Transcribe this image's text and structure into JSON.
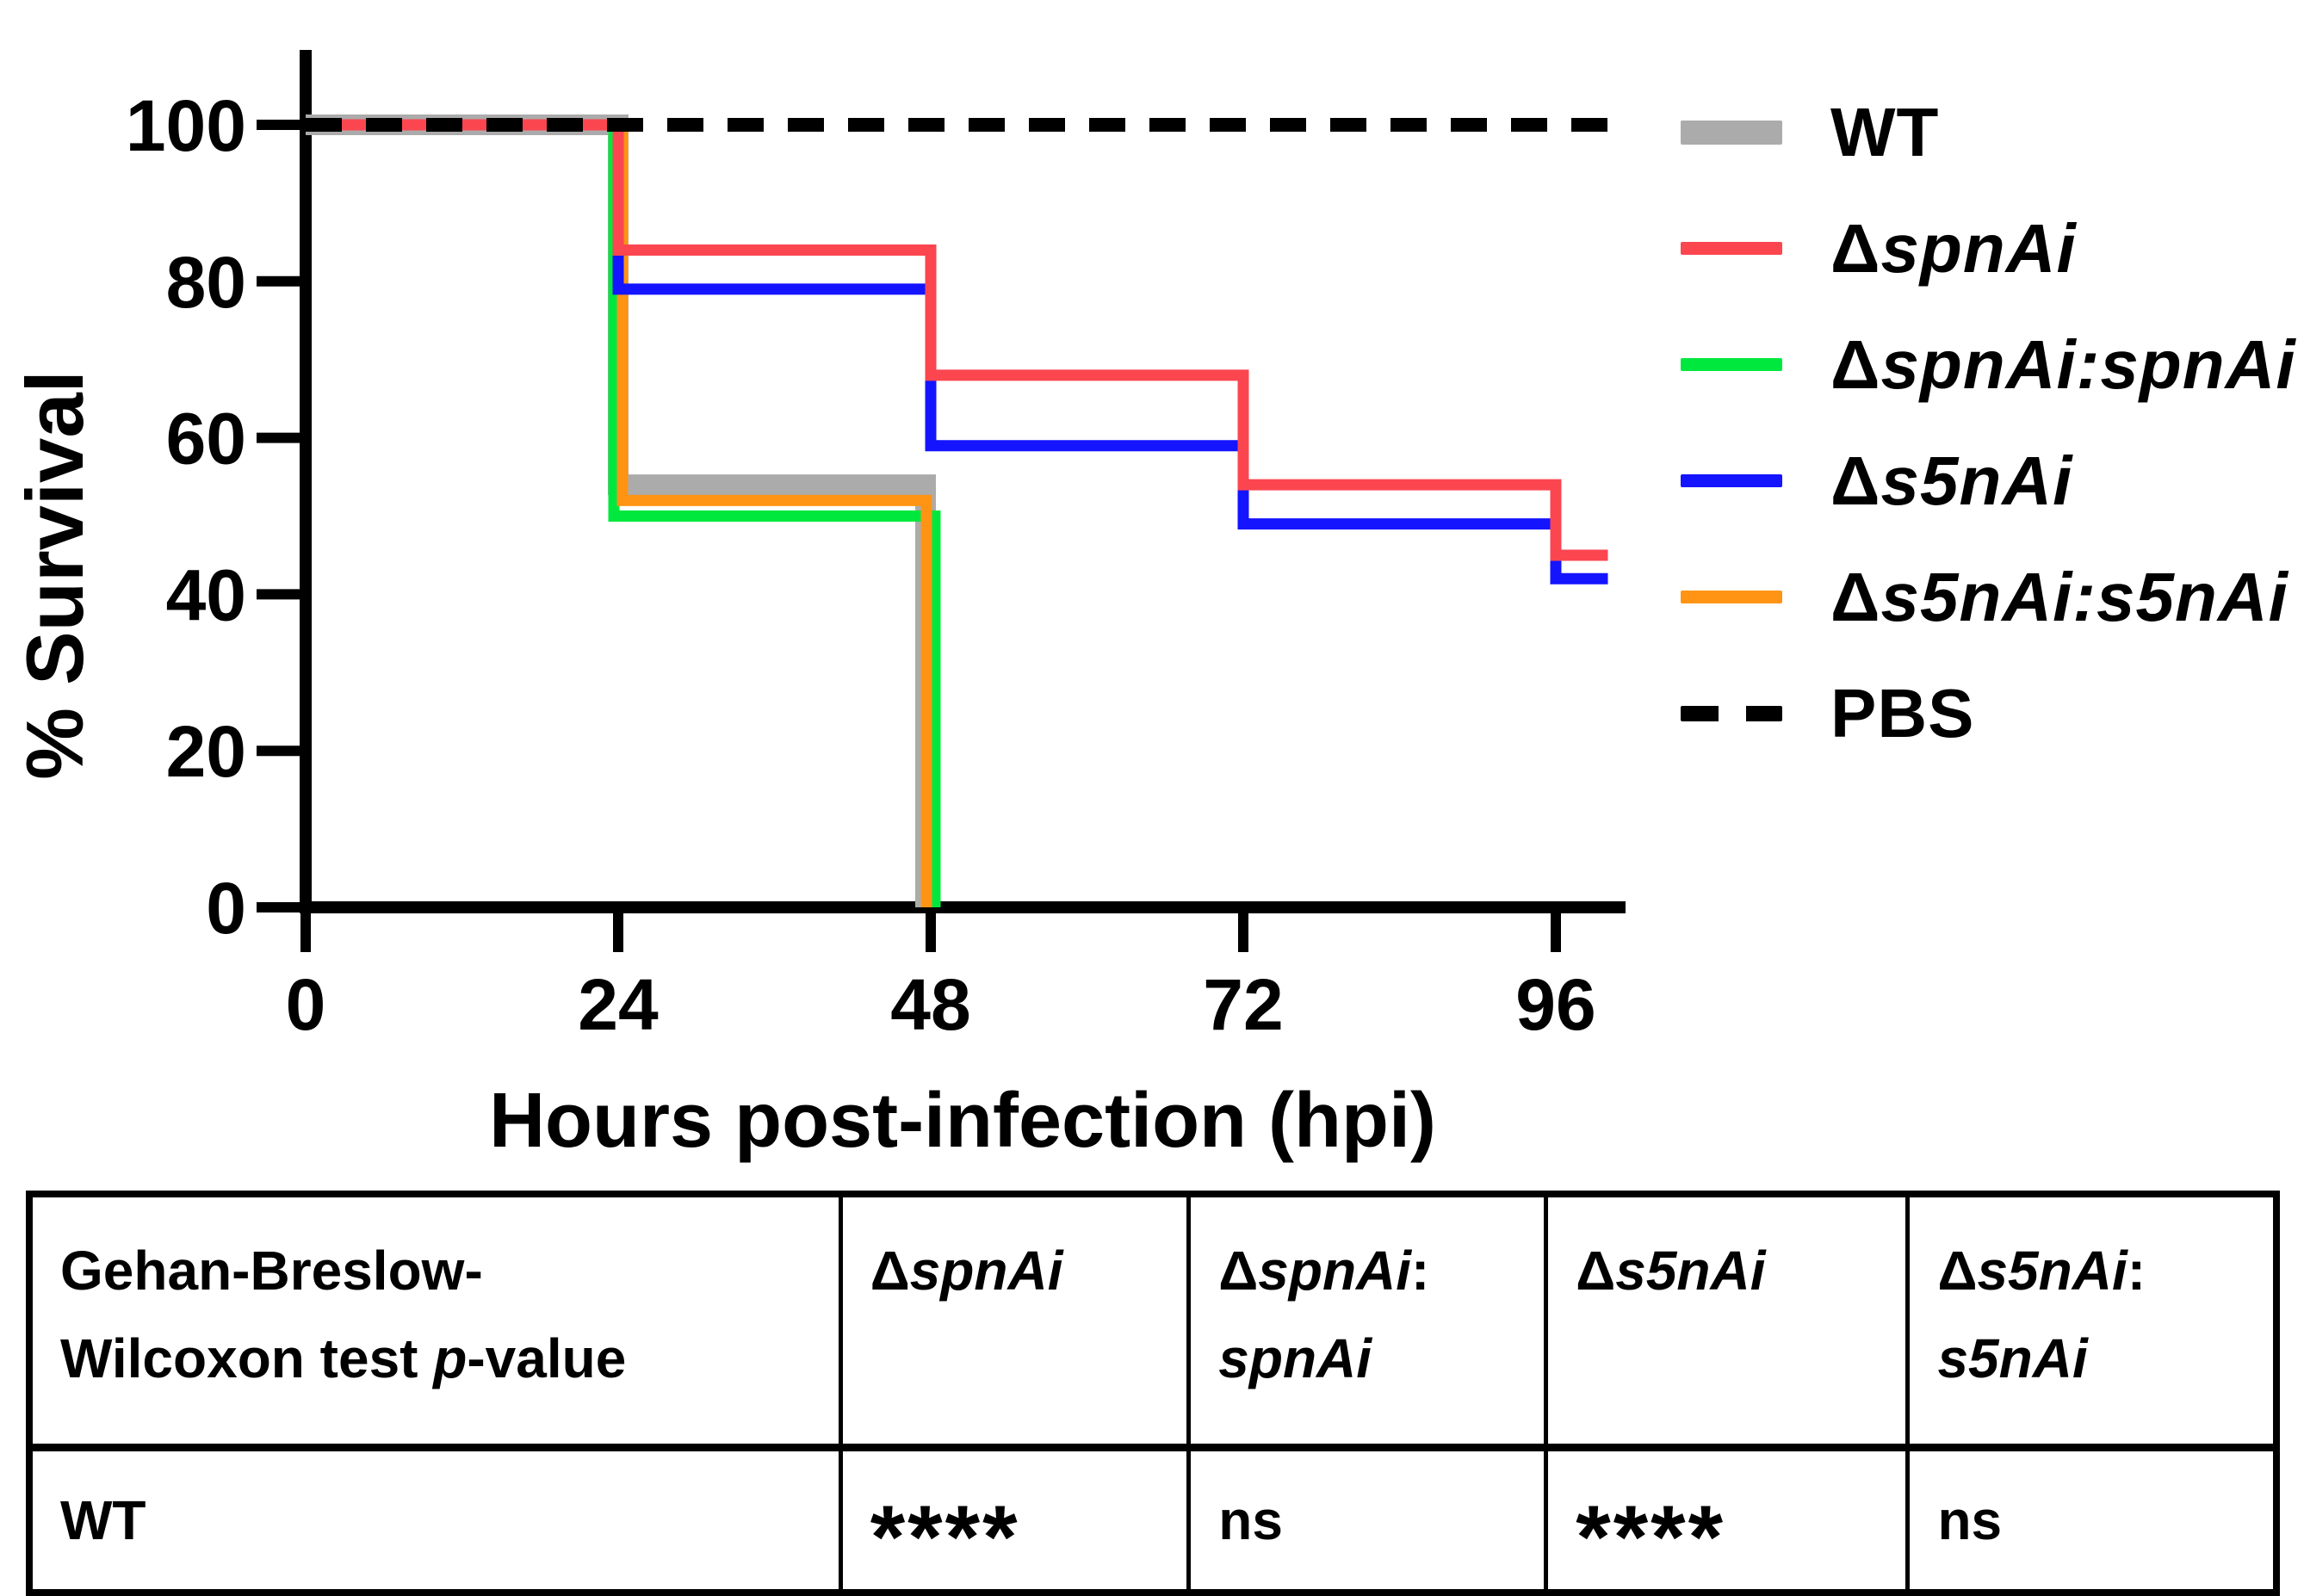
{
  "chart_data": {
    "type": "line",
    "subtype": "kaplan-meier-step-survival",
    "title": "",
    "xlabel": "Hours post-infection (hpi)",
    "ylabel": "% Survival",
    "xlim": [
      0,
      100
    ],
    "ylim": [
      0,
      100
    ],
    "x_ticks": [
      0,
      24,
      48,
      72,
      96
    ],
    "y_ticks": [
      0,
      20,
      40,
      60,
      80,
      100
    ],
    "grid": false,
    "legend_position": "right",
    "series": [
      {
        "name": "WT",
        "color": "#ababab",
        "stroke_width": 24,
        "dash": null,
        "points": [
          [
            0,
            100
          ],
          [
            24,
            100
          ],
          [
            24,
            54
          ],
          [
            48,
            54
          ],
          [
            48,
            0
          ]
        ]
      },
      {
        "name": "ΔspnAi",
        "color": "#fb4650",
        "stroke_width": 13,
        "dash": null,
        "points": [
          [
            0,
            100
          ],
          [
            24,
            100
          ],
          [
            24,
            84
          ],
          [
            48,
            84
          ],
          [
            48,
            68
          ],
          [
            72,
            68
          ],
          [
            72,
            54
          ],
          [
            96,
            54
          ],
          [
            96,
            45
          ],
          [
            100,
            45
          ]
        ]
      },
      {
        "name": "ΔspnAi:spnAi",
        "color": "#00e83e",
        "stroke_width": 13,
        "dash": null,
        "points": [
          [
            0,
            100
          ],
          [
            24,
            100
          ],
          [
            24,
            50
          ],
          [
            48,
            50
          ],
          [
            48,
            0
          ]
        ]
      },
      {
        "name": "Δs5nAi",
        "color": "#1414ff",
        "stroke_width": 13,
        "dash": null,
        "points": [
          [
            0,
            100
          ],
          [
            24,
            100
          ],
          [
            24,
            79
          ],
          [
            48,
            79
          ],
          [
            48,
            59
          ],
          [
            72,
            59
          ],
          [
            72,
            49
          ],
          [
            96,
            49
          ],
          [
            96,
            42
          ],
          [
            100,
            42
          ]
        ]
      },
      {
        "name": "Δs5nAi:s5nAi",
        "color": "#ff9414",
        "stroke_width": 13,
        "dash": null,
        "points": [
          [
            0,
            100
          ],
          [
            24,
            100
          ],
          [
            24,
            52
          ],
          [
            48,
            52
          ],
          [
            48,
            0
          ]
        ]
      },
      {
        "name": "PBS",
        "color": "#000000",
        "stroke_width": 16,
        "dash": [
          42,
          28
        ],
        "points": [
          [
            0,
            100
          ],
          [
            100,
            100
          ]
        ]
      }
    ],
    "draw_order": [
      "WT",
      "ΔspnAi:spnAi",
      "Δs5nAi:s5nAi",
      "Δs5nAi",
      "ΔspnAi",
      "PBS"
    ]
  },
  "render_hints": {
    "drop_offsets": {
      "WT": {
        "48": -6
      },
      "ΔspnAi:spnAi": {
        "24": -5,
        "48": 5
      },
      "Δs5nAi:s5nAi": {
        "24": 5,
        "48": -5
      }
    }
  },
  "chart": {
    "ylabel": "% Survival",
    "xlabel": "Hours post-infection (hpi)"
  },
  "legend": {
    "items": [
      {
        "prefix": "WT",
        "gene": "",
        "color": "#ababab",
        "thickness": 28,
        "dashed": false
      },
      {
        "prefix": "Δ",
        "gene": "spnAi",
        "color": "#fb4650",
        "thickness": 15,
        "dashed": false
      },
      {
        "prefix": "Δ",
        "gene": "spnAi:spnAi",
        "color": "#00e83e",
        "thickness": 15,
        "dashed": false
      },
      {
        "prefix": "Δ",
        "gene": "s5nAi",
        "color": "#1414ff",
        "thickness": 15,
        "dashed": false
      },
      {
        "prefix": "Δ",
        "gene": "s5nAi:s5nAi",
        "color": "#ff9414",
        "thickness": 15,
        "dashed": false
      },
      {
        "prefix": "PBS",
        "gene": "",
        "color": "#000000",
        "thickness": 18,
        "dashed": true
      }
    ]
  },
  "table": {
    "header_col1": {
      "line1": "Gehan-Breslow-",
      "line2_pre": "Wilcoxon test ",
      "line2_italic": "p",
      "line2_post": "-value"
    },
    "columns": [
      {
        "delta": "Δ",
        "gene1": "spnAi",
        "colon": "",
        "gene2": ""
      },
      {
        "delta": "Δ",
        "gene1": "spnAi",
        "colon": ":",
        "gene2": "spnAi"
      },
      {
        "delta": "Δ",
        "gene1": "s5nAi",
        "colon": "",
        "gene2": ""
      },
      {
        "delta": "Δ",
        "gene1": "s5nAi",
        "colon": ":",
        "gene2": "s5nAi"
      }
    ],
    "row": {
      "label": "WT",
      "values": [
        "****",
        "ns",
        "****",
        "ns"
      ]
    }
  }
}
